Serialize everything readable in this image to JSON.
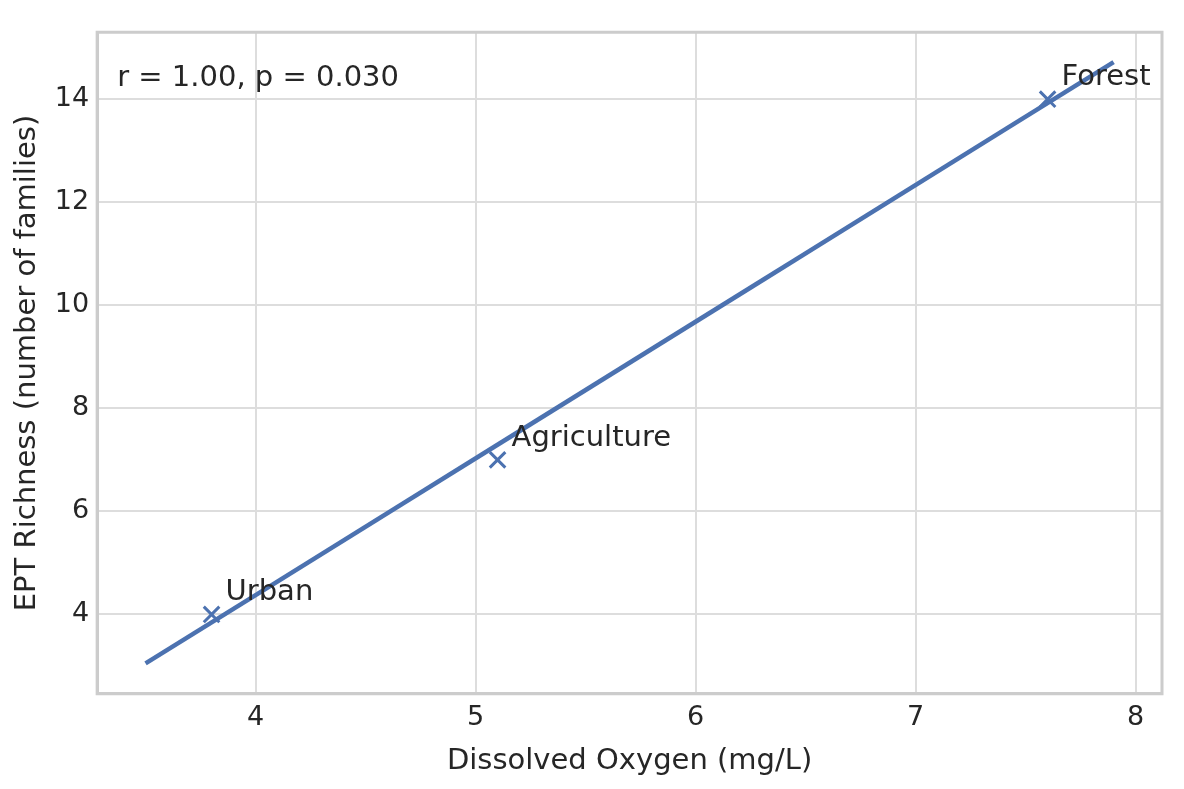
{
  "chart_data": {
    "type": "scatter",
    "xlabel": "Dissolved Oxygen (mg/L)",
    "ylabel": "EPT Richness (number of families)",
    "xlim": [
      3.28,
      8.12
    ],
    "xticks": [
      4,
      5,
      6,
      7,
      8
    ],
    "ylim": [
      2.46,
      15.3
    ],
    "yticks": [
      4,
      6,
      8,
      10,
      12,
      14
    ],
    "grid": true,
    "legend": false,
    "series": [
      {
        "type": "scatter",
        "color": "#4c72b0",
        "marker": "cross",
        "x": [
          3.8,
          5.1,
          7.6
        ],
        "values": [
          4,
          7,
          14
        ]
      },
      {
        "type": "line",
        "color": "#4c72b0",
        "marker": "none",
        "line_style": "solid",
        "x": [
          3.5,
          7.9
        ],
        "values": [
          3.05,
          14.72
        ]
      }
    ],
    "annotations": [
      "r = 1.00, p = 0.030",
      {
        "text": "Urban",
        "x": 3.8,
        "y": 4
      },
      {
        "text": "Agriculture",
        "x": 5.1,
        "y": 7
      },
      {
        "text": "Forest",
        "x": 7.6,
        "y": 14
      }
    ]
  }
}
